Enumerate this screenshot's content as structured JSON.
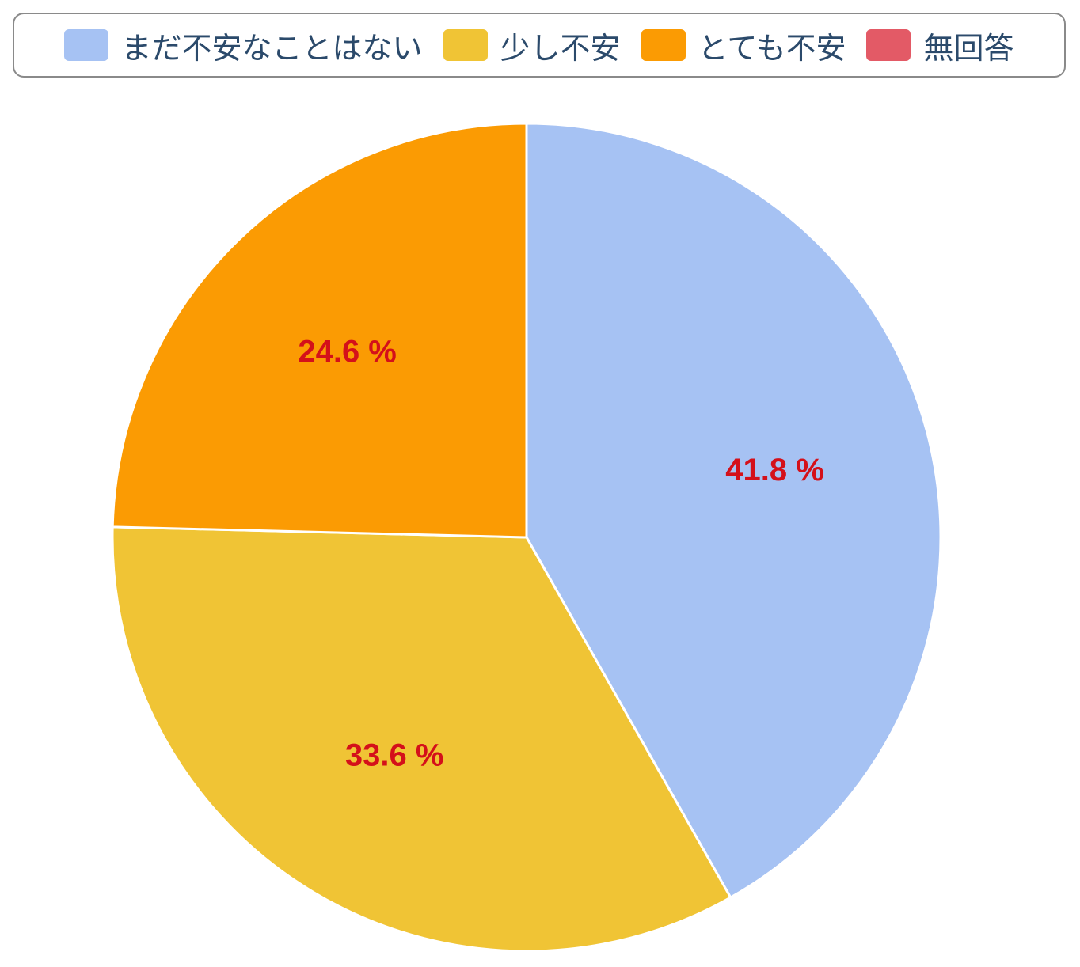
{
  "chart_data": {
    "type": "pie",
    "title": "",
    "legend_position": "top",
    "slices": [
      {
        "label": "まだ不安なことはない",
        "value": 41.8,
        "display": "41.8 %",
        "color": "#a6c2f3"
      },
      {
        "label": "少し不安",
        "value": 33.6,
        "display": "33.6 %",
        "color": "#f0c435"
      },
      {
        "label": "とても不安",
        "value": 24.6,
        "display": "24.6 %",
        "color": "#fb9b03"
      },
      {
        "label": "無回答",
        "value": 0.0,
        "display": "",
        "color": "#e35a66"
      }
    ]
  }
}
